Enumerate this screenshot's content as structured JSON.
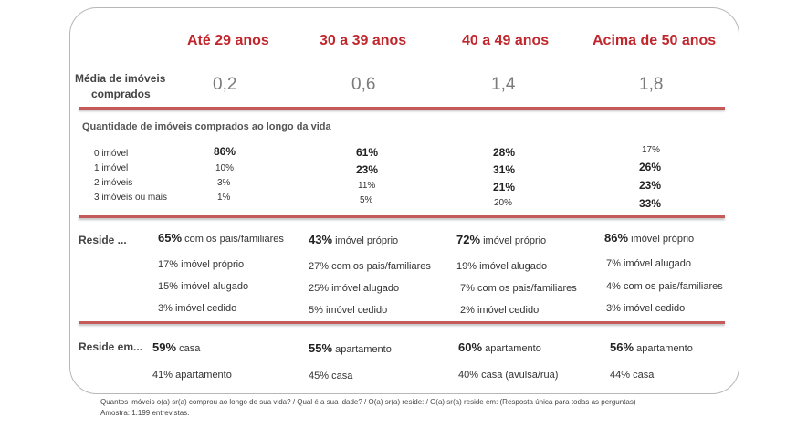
{
  "headers": [
    "Até 29 anos",
    "30 a 39 anos",
    "40 a 49 anos",
    "Acima de 50 anos"
  ],
  "media": {
    "label_line1": "Média de imóveis",
    "label_line2": "comprados",
    "values": [
      "0,2",
      "0,6",
      "1,4",
      "1,8"
    ]
  },
  "quantidade": {
    "title": "Quantidade de imóveis comprados ao longo da vida",
    "rows": [
      "0 imóvel",
      "1 imóvel",
      "2 imóveis",
      "3 imóveis ou mais"
    ],
    "cols": [
      [
        "86%",
        "10%",
        "3%",
        "1%"
      ],
      [
        "61%",
        "23%",
        "11%",
        "5%"
      ],
      [
        "28%",
        "31%",
        "21%",
        "20%"
      ],
      [
        "17%",
        "26%",
        "23%",
        "33%"
      ]
    ]
  },
  "reside": {
    "label": "Reside ...",
    "cols": [
      [
        {
          "pct": "65%",
          "text": " com os pais/familiares"
        },
        {
          "pct": "17%",
          "text": " imóvel próprio"
        },
        {
          "pct": "15%",
          "text": " imóvel alugado"
        },
        {
          "pct": "3%",
          "text": " imóvel cedido"
        }
      ],
      [
        {
          "pct": "43%",
          "text": " imóvel próprio"
        },
        {
          "pct": "27%",
          "text": " com os pais/familiares"
        },
        {
          "pct": "25%",
          "text": " imóvel alugado"
        },
        {
          "pct": "5%",
          "text": " imóvel cedido"
        }
      ],
      [
        {
          "pct": "72%",
          "text": " imóvel próprio"
        },
        {
          "pct": "19%",
          "text": " imóvel alugado"
        },
        {
          "pct": "7%",
          "text": " com os pais/familiares"
        },
        {
          "pct": "2%",
          "text": " imóvel cedido"
        }
      ],
      [
        {
          "pct": "86%",
          "text": " imóvel próprio"
        },
        {
          "pct": "7%",
          "text": " imóvel alugado"
        },
        {
          "pct": "4%",
          "text": " com os pais/familiares"
        },
        {
          "pct": "3%",
          "text": " imóvel cedido"
        }
      ]
    ]
  },
  "reside_em": {
    "label": "Reside em...",
    "cols": [
      [
        {
          "pct": "59%",
          "text": " casa"
        },
        {
          "pct": "41%",
          "text": " apartamento"
        }
      ],
      [
        {
          "pct": "55%",
          "text": " apartamento"
        },
        {
          "pct": "45%",
          "text": " casa"
        }
      ],
      [
        {
          "pct": "60%",
          "text": " apartamento"
        },
        {
          "pct": "40%",
          "text": " casa (avulsa/rua)"
        }
      ],
      [
        {
          "pct": "56%",
          "text": " apartamento"
        },
        {
          "pct": "44%",
          "text": " casa"
        }
      ]
    ]
  },
  "footnote": {
    "line1": "Quantos imóveis o(a) sr(a) comprou ao longo de sua vida? / Qual é a sua idade? / O(a) sr(a) reside: / O(a) sr(a) reside em: (Resposta única para todas as perguntas)",
    "line2": "Amostra: 1.199 entrevistas."
  }
}
